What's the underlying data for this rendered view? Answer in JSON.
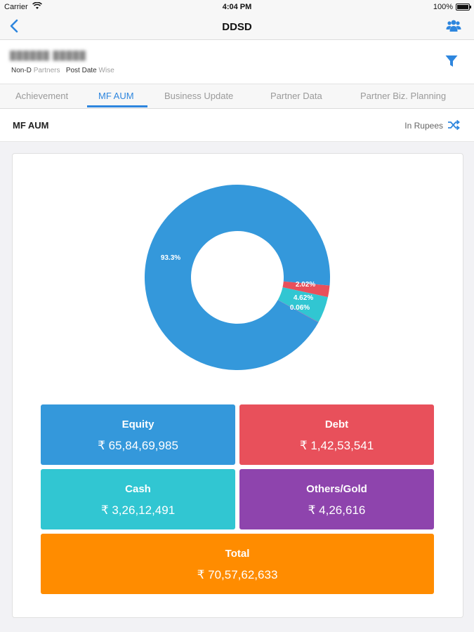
{
  "status_bar": {
    "carrier": "Carrier",
    "time": "4:04 PM",
    "battery": "100%"
  },
  "nav": {
    "title": "DDSD",
    "back_icon": "chevron-left-icon",
    "users_icon": "users-icon",
    "accent": "#2e86de"
  },
  "filter": {
    "name_blurred": "██████ █████",
    "category": "Non-D",
    "category_suffix": "Partners",
    "date_type": "Post Date",
    "date_suffix": "Wise",
    "filter_icon": "funnel-icon"
  },
  "tabs": [
    {
      "label": "Achievement",
      "active": false
    },
    {
      "label": "MF AUM",
      "active": true
    },
    {
      "label": "Business Update",
      "active": false
    },
    {
      "label": "Partner Data",
      "active": false
    },
    {
      "label": "Partner Biz. Planning",
      "active": false
    }
  ],
  "section": {
    "title": "MF AUM",
    "unit_label": "In Rupees",
    "unit_icon": "shuffle-icon"
  },
  "chart_data": {
    "type": "pie",
    "donut": true,
    "categories": [
      "Equity",
      "Debt",
      "Cash",
      "Others/Gold"
    ],
    "values": [
      93.3,
      2.02,
      4.62,
      0.06
    ],
    "labels": [
      "93.3%",
      "2.02%",
      "4.62%",
      "0.06%"
    ],
    "colors": [
      "#3498db",
      "#e8505b",
      "#31c6d2",
      "#8e44ad"
    ]
  },
  "summary": {
    "equity": {
      "label": "Equity",
      "value": "₹ 65,84,69,985",
      "color": "#3498db"
    },
    "debt": {
      "label": "Debt",
      "value": "₹ 1,42,53,541",
      "color": "#e8505b"
    },
    "cash": {
      "label": "Cash",
      "value": "₹ 3,26,12,491",
      "color": "#31c6d2"
    },
    "others": {
      "label": "Others/Gold",
      "value": "₹ 4,26,616",
      "color": "#8e44ad"
    },
    "total": {
      "label": "Total",
      "value": "₹ 70,57,62,633",
      "color": "#ff8c00"
    }
  }
}
